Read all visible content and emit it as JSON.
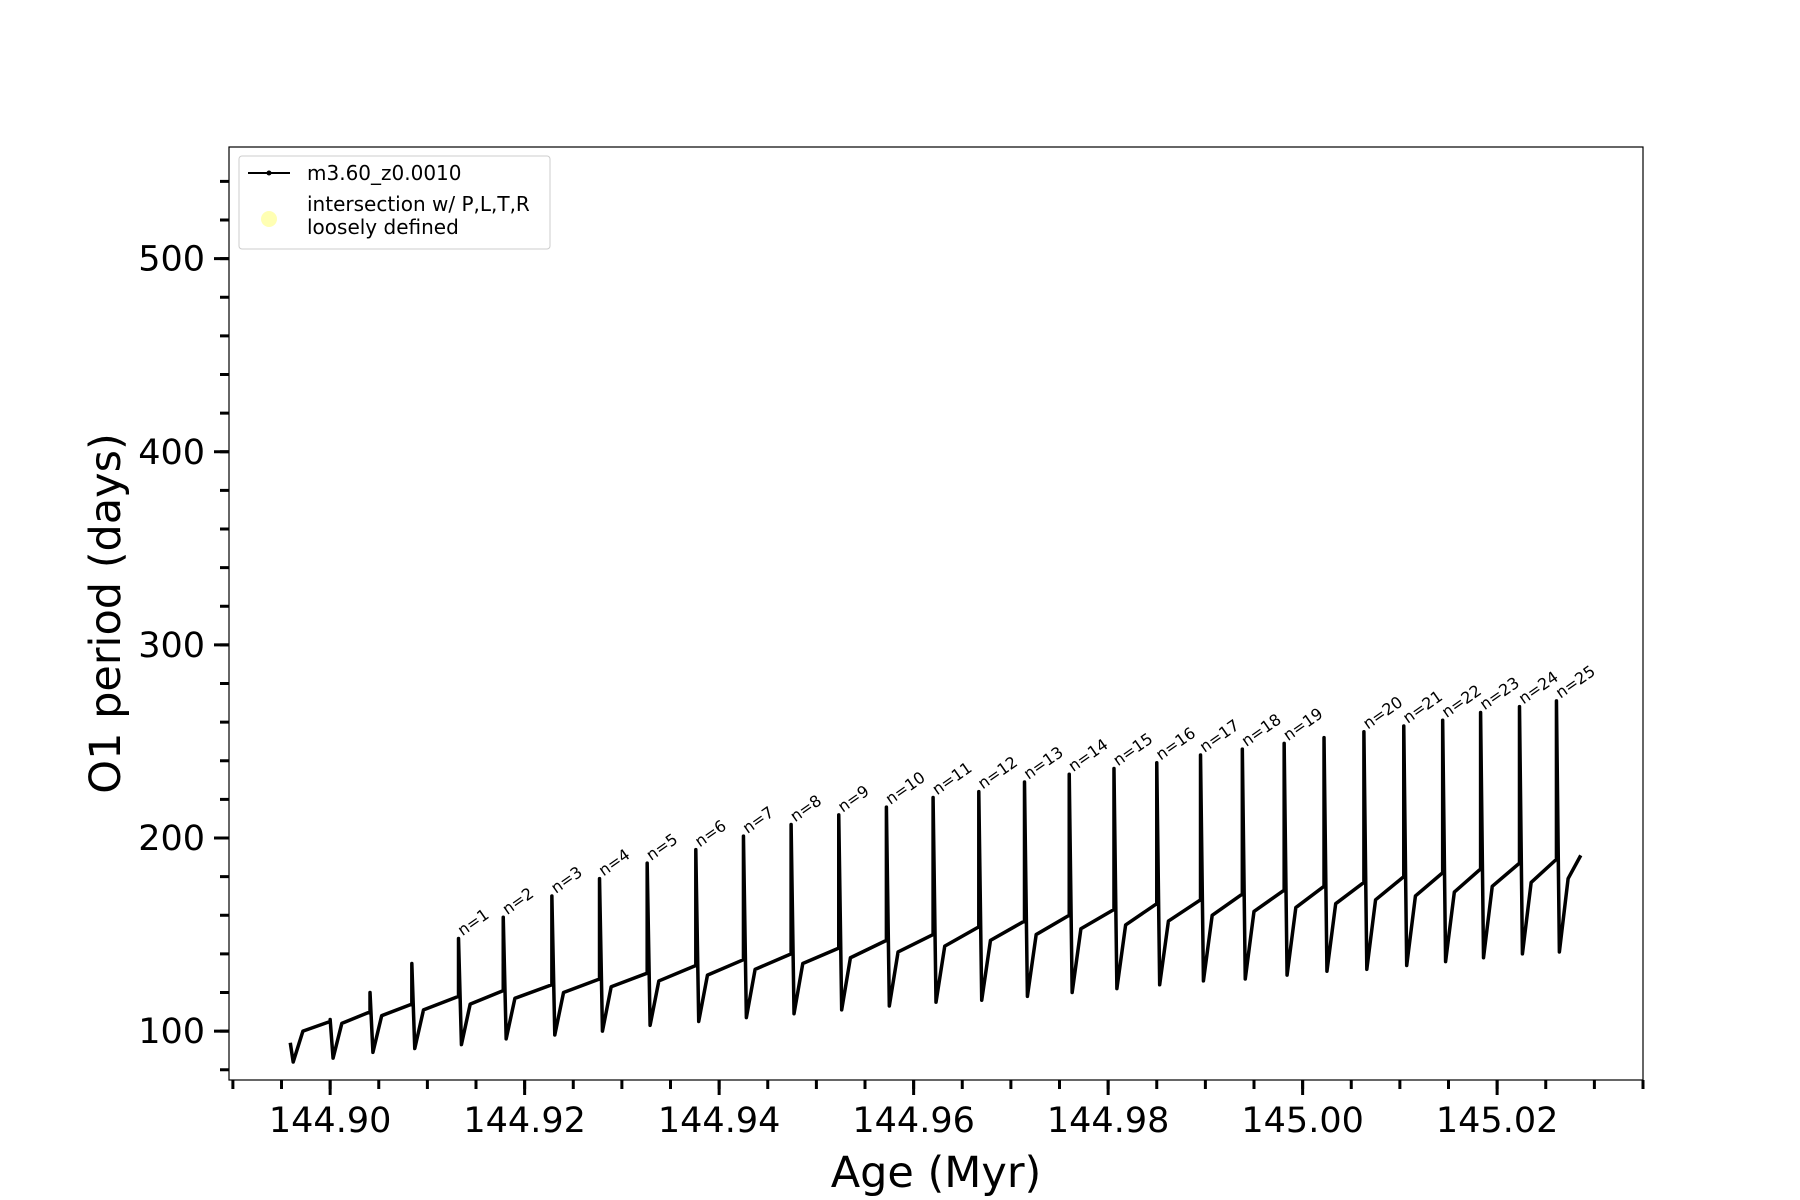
{
  "chart_data": {
    "type": "line",
    "xlabel": "Age (Myr)",
    "ylabel": "O1 period (days)",
    "xlim": [
      144.8896,
      145.035
    ],
    "ylim": [
      74.7,
      557.8
    ],
    "xticks": [
      {
        "value": 144.9,
        "label": "144.90"
      },
      {
        "value": 144.92,
        "label": "144.92"
      },
      {
        "value": 144.94,
        "label": "144.94"
      },
      {
        "value": 144.96,
        "label": "144.96"
      },
      {
        "value": 144.98,
        "label": "144.98"
      },
      {
        "value": 145.0,
        "label": "145.00"
      },
      {
        "value": 145.02,
        "label": "145.02"
      }
    ],
    "xminorticks": [
      144.89,
      144.895,
      144.9,
      144.905,
      144.91,
      144.915,
      144.92,
      144.925,
      144.93,
      144.935,
      144.94,
      144.945,
      144.95,
      144.955,
      144.96,
      144.965,
      144.97,
      144.975,
      144.98,
      144.985,
      144.99,
      144.995,
      145.0,
      145.005,
      145.01,
      145.015,
      145.02,
      145.025,
      145.03,
      145.035
    ],
    "yticks": [
      100,
      200,
      300,
      400,
      500
    ],
    "yminorticks": [
      80,
      100,
      120,
      140,
      160,
      180,
      200,
      220,
      240,
      260,
      280,
      300,
      320,
      340,
      360,
      380,
      400,
      420,
      440,
      460,
      480,
      500,
      520,
      540
    ],
    "legend_loc": "upper left",
    "series": [
      {
        "name": "m3.60_z0.0010",
        "color": "#000000",
        "x": [
          144.8959,
          144.8962,
          144.8972,
          144.9,
          144.9,
          144.9003,
          144.9012,
          144.9041,
          144.9041,
          144.9044,
          144.9053,
          144.9084,
          144.9084,
          144.9087,
          144.9096,
          144.9132,
          144.9132,
          144.9135,
          144.9144,
          144.9178,
          144.9178,
          144.9181,
          144.919,
          144.9228,
          144.9228,
          144.9231,
          144.924,
          144.9277,
          144.9277,
          144.928,
          144.9289,
          144.9326,
          144.9326,
          144.9329,
          144.9338,
          144.9376,
          144.9376,
          144.9379,
          144.9388,
          144.9425,
          144.9425,
          144.9428,
          144.9437,
          144.9474,
          144.9474,
          144.9477,
          144.9486,
          144.9523,
          144.9523,
          144.9526,
          144.9535,
          144.9572,
          144.9572,
          144.9575,
          144.9584,
          144.962,
          144.962,
          144.9623,
          144.9632,
          144.9667,
          144.9667,
          144.967,
          144.9679,
          144.9714,
          144.9714,
          144.9717,
          144.9726,
          144.976,
          144.976,
          144.9763,
          144.9772,
          144.9806,
          144.9806,
          144.9809,
          144.9818,
          144.985,
          144.985,
          144.9853,
          144.9862,
          144.9895,
          144.9895,
          144.9898,
          144.9907,
          144.9938,
          144.9938,
          144.9941,
          144.995,
          144.9981,
          144.9981,
          144.9984,
          144.9993,
          145.0022,
          145.0022,
          145.0025,
          145.0034,
          145.0063,
          145.0063,
          145.0066,
          145.0075,
          145.0104,
          145.0104,
          145.0107,
          145.0116,
          145.0144,
          145.0144,
          145.0147,
          145.0156,
          145.0183,
          145.0183,
          145.0186,
          145.0195,
          145.0223,
          145.0223,
          145.0226,
          145.0235,
          145.0261,
          145.0261,
          145.0264,
          145.0273,
          145.0286
        ],
        "values": [
          94,
          84,
          100,
          105,
          106,
          86,
          104,
          110,
          120,
          89,
          108,
          114,
          135,
          91,
          111,
          118,
          148,
          93,
          114,
          121,
          159,
          96,
          117,
          124,
          170,
          98,
          120,
          127,
          179,
          100,
          123,
          130,
          187,
          103,
          126,
          134,
          194,
          105,
          129,
          137,
          201,
          107,
          132,
          140,
          207,
          109,
          135,
          143,
          212,
          111,
          138,
          147,
          216,
          113,
          141,
          150,
          221,
          115,
          144,
          154,
          224,
          116,
          147,
          157,
          229,
          118,
          150,
          160,
          233,
          120,
          153,
          163,
          236,
          122,
          155,
          166,
          239,
          124,
          157,
          168,
          243,
          126,
          160,
          171,
          246,
          127,
          162,
          173,
          249,
          129,
          164,
          175,
          252,
          131,
          166,
          177,
          255,
          132,
          168,
          180,
          258,
          134,
          170,
          182,
          261,
          136,
          172,
          184,
          265,
          138,
          175,
          187,
          268,
          140,
          177,
          189,
          271,
          141,
          179,
          191
        ]
      }
    ],
    "legend_extra": [
      {
        "name": "intersection w/ P,L,T,R\nloosely defined",
        "color": "#ffffb3"
      }
    ],
    "annotations": [
      {
        "text": "n=1",
        "x": 144.9132,
        "y": 148
      },
      {
        "text": "n=2",
        "x": 144.9178,
        "y": 159
      },
      {
        "text": "n=3",
        "x": 144.9228,
        "y": 170
      },
      {
        "text": "n=4",
        "x": 144.9277,
        "y": 179
      },
      {
        "text": "n=5",
        "x": 144.9326,
        "y": 187
      },
      {
        "text": "n=6",
        "x": 144.9376,
        "y": 194
      },
      {
        "text": "n=7",
        "x": 144.9425,
        "y": 201
      },
      {
        "text": "n=8",
        "x": 144.9474,
        "y": 207
      },
      {
        "text": "n=9",
        "x": 144.9523,
        "y": 212
      },
      {
        "text": "n=10",
        "x": 144.9572,
        "y": 216
      },
      {
        "text": "n=11",
        "x": 144.962,
        "y": 221
      },
      {
        "text": "n=12",
        "x": 144.9667,
        "y": 224
      },
      {
        "text": "n=13",
        "x": 144.9714,
        "y": 229
      },
      {
        "text": "n=14",
        "x": 144.976,
        "y": 233
      },
      {
        "text": "n=15",
        "x": 144.9806,
        "y": 236
      },
      {
        "text": "n=16",
        "x": 144.985,
        "y": 239
      },
      {
        "text": "n=17",
        "x": 144.9895,
        "y": 243
      },
      {
        "text": "n=18",
        "x": 144.9938,
        "y": 246
      },
      {
        "text": "n=19",
        "x": 144.9981,
        "y": 249
      },
      {
        "text": "n=20",
        "x": 145.0063,
        "y": 255
      },
      {
        "text": "n=21",
        "x": 145.0104,
        "y": 258
      },
      {
        "text": "n=22",
        "x": 145.0144,
        "y": 261
      },
      {
        "text": "n=23",
        "x": 145.0183,
        "y": 265
      },
      {
        "text": "n=24",
        "x": 145.0223,
        "y": 268
      },
      {
        "text": "n=25",
        "x": 145.0261,
        "y": 271
      }
    ]
  }
}
